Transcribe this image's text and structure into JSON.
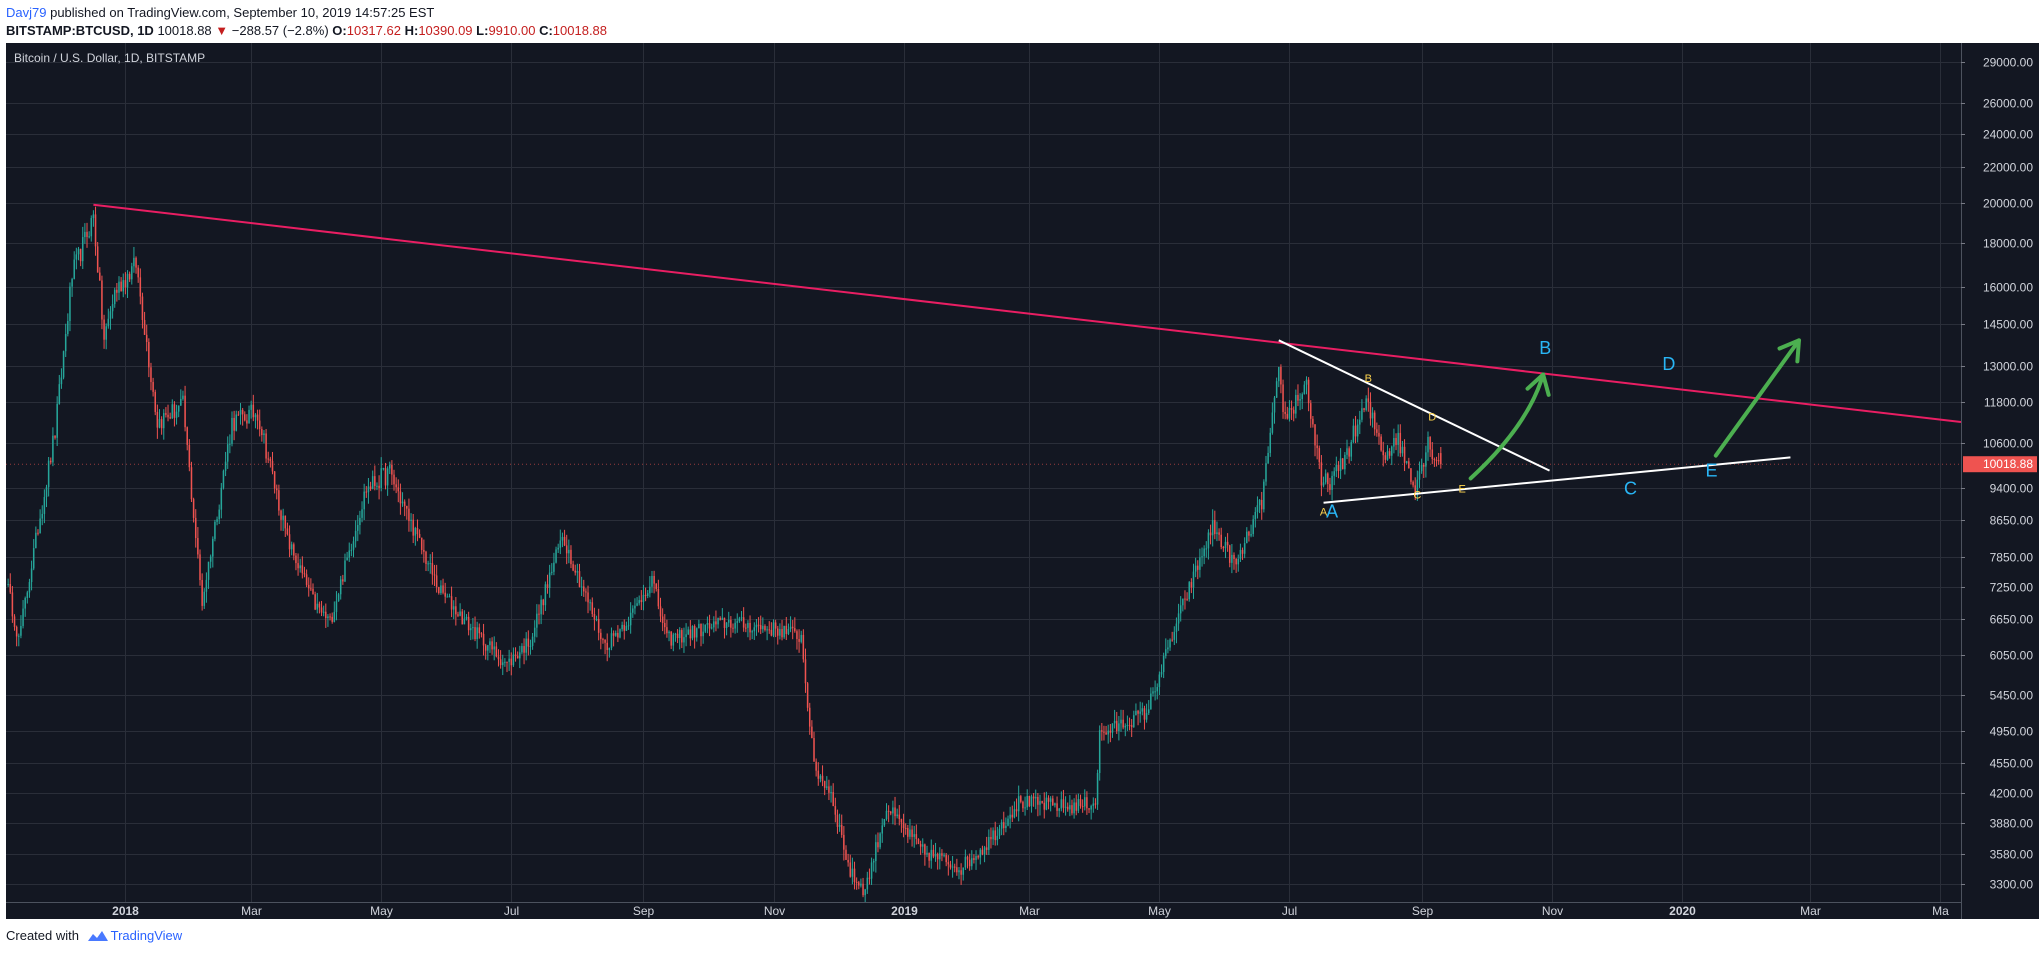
{
  "header": {
    "author": "Davj79",
    "published_text": "published on TradingView.com, September 10, 2019 14:57:25 EST",
    "symbol": "BITSTAMP:BTCUSD, 1D",
    "last": "10018.88",
    "change_arrow": "▼",
    "change": "−288.57 (−2.8%)",
    "o_label": "O:",
    "o_value": "10317.62",
    "h_label": "H:",
    "h_value": "10390.09",
    "l_label": "L:",
    "l_value": "9910.00",
    "c_label": "C:",
    "c_value": "10018.88"
  },
  "footer": {
    "created_with": "Created with",
    "brand": "TradingView"
  },
  "colors": {
    "background": "#131722",
    "grid": "#2a2e39",
    "up": "#26a69a",
    "down": "#ef5350",
    "resistance": "#e91e63",
    "trendline": "#ffffff",
    "arrow": "#4caf50",
    "wave_small": "#ffd54f",
    "wave_big": "#29b6f6",
    "price_tag": "#ef5350"
  },
  "chart_data": {
    "type": "candlestick",
    "title": "Bitcoin / U.S. Dollar, 1D, BITSTAMP",
    "scale": "log",
    "ylim": [
      3150,
      30500
    ],
    "last_price": "10018.88",
    "y_ticks": [
      "29000.00",
      "26000.00",
      "24000.00",
      "22000.00",
      "20000.00",
      "18000.00",
      "16000.00",
      "14500.00",
      "13000.00",
      "11800.00",
      "10600.00",
      "9400.00",
      "8650.00",
      "7850.00",
      "7250.00",
      "6650.00",
      "6050.00",
      "5450.00",
      "4950.00",
      "4550.00",
      "4200.00",
      "3880.00",
      "3580.00",
      "3300.00"
    ],
    "x_ticks": [
      {
        "label": "2018",
        "date": "2018-01-01",
        "bold": true
      },
      {
        "label": "Mar",
        "date": "2018-03-01"
      },
      {
        "label": "May",
        "date": "2018-05-01"
      },
      {
        "label": "Jul",
        "date": "2018-07-01"
      },
      {
        "label": "Sep",
        "date": "2018-09-01"
      },
      {
        "label": "Nov",
        "date": "2018-11-01"
      },
      {
        "label": "2019",
        "date": "2019-01-01",
        "bold": true
      },
      {
        "label": "Mar",
        "date": "2019-03-01"
      },
      {
        "label": "May",
        "date": "2019-05-01"
      },
      {
        "label": "Jul",
        "date": "2019-07-01"
      },
      {
        "label": "Sep",
        "date": "2019-09-01"
      },
      {
        "label": "Nov",
        "date": "2019-11-01"
      },
      {
        "label": "2020",
        "date": "2020-01-01",
        "bold": true
      },
      {
        "label": "Mar",
        "date": "2020-03-01"
      },
      {
        "label": "Ma",
        "date": "2020-05-01"
      }
    ],
    "xlim": [
      "2017-11-06",
      "2020-05-11"
    ],
    "price_path": [
      [
        "2017-11-06",
        7400
      ],
      [
        "2017-11-12",
        6300
      ],
      [
        "2017-11-20",
        8200
      ],
      [
        "2017-11-29",
        10900
      ],
      [
        "2017-12-07",
        16500
      ],
      [
        "2017-12-17",
        19300
      ],
      [
        "2017-12-22",
        13900
      ],
      [
        "2017-12-27",
        15800
      ],
      [
        "2018-01-06",
        17000
      ],
      [
        "2018-01-16",
        11200
      ],
      [
        "2018-01-28",
        11700
      ],
      [
        "2018-02-06",
        6950
      ],
      [
        "2018-02-20",
        11200
      ],
      [
        "2018-03-04",
        11500
      ],
      [
        "2018-03-18",
        8200
      ],
      [
        "2018-03-31",
        6900
      ],
      [
        "2018-04-07",
        6600
      ],
      [
        "2018-04-24",
        9400
      ],
      [
        "2018-05-05",
        9800
      ],
      [
        "2018-05-28",
        7200
      ],
      [
        "2018-06-12",
        6500
      ],
      [
        "2018-06-29",
        5900
      ],
      [
        "2018-07-10",
        6300
      ],
      [
        "2018-07-25",
        8300
      ],
      [
        "2018-08-14",
        6200
      ],
      [
        "2018-08-26",
        6700
      ],
      [
        "2018-09-05",
        7400
      ],
      [
        "2018-09-12",
        6300
      ],
      [
        "2018-10-10",
        6600
      ],
      [
        "2018-11-06",
        6450
      ],
      [
        "2018-11-14",
        6350
      ],
      [
        "2018-11-20",
        4500
      ],
      [
        "2018-11-28",
        4200
      ],
      [
        "2018-12-07",
        3400
      ],
      [
        "2018-12-14",
        3250
      ],
      [
        "2018-12-24",
        4050
      ],
      [
        "2019-01-10",
        3600
      ],
      [
        "2019-01-28",
        3450
      ],
      [
        "2019-02-08",
        3650
      ],
      [
        "2019-02-24",
        4100
      ],
      [
        "2019-03-20",
        4050
      ],
      [
        "2019-04-01",
        4100
      ],
      [
        "2019-04-03",
        4900
      ],
      [
        "2019-04-25",
        5200
      ],
      [
        "2019-05-12",
        6900
      ],
      [
        "2019-05-26",
        8500
      ],
      [
        "2019-06-06",
        7650
      ],
      [
        "2019-06-18",
        9100
      ],
      [
        "2019-06-26",
        12700
      ],
      [
        "2019-06-29",
        11300
      ],
      [
        "2019-07-09",
        12400
      ],
      [
        "2019-07-16",
        9450
      ],
      [
        "2019-07-24",
        9800
      ],
      [
        "2019-08-06",
        11750
      ],
      [
        "2019-08-15",
        10250
      ],
      [
        "2019-08-20",
        10800
      ],
      [
        "2019-08-29",
        9480
      ],
      [
        "2019-09-04",
        10600
      ],
      [
        "2019-09-10",
        10018.88
      ]
    ],
    "drawings": {
      "resistance_line": {
        "from": [
          "2017-12-17",
          19891
        ],
        "to": [
          "2020-05-11",
          11200
        ]
      },
      "upper_triangle_line": {
        "from": [
          "2019-06-26",
          13900
        ],
        "to": [
          "2019-10-31",
          9850
        ]
      },
      "lower_triangle_line": {
        "from": [
          "2019-07-17",
          9050
        ],
        "to": [
          "2020-02-21",
          10200
        ]
      },
      "arrows": [
        {
          "from": [
            "2019-09-24",
            9650
          ],
          "ctrl": [
            "2019-10-21",
            11100
          ],
          "to": [
            "2019-10-28",
            12700
          ]
        },
        {
          "from": [
            "2020-01-17",
            10250
          ],
          "to": [
            "2020-02-25",
            13900
          ]
        }
      ],
      "wave_labels_small": [
        {
          "text": "A",
          "at": [
            "2019-07-17",
            8750
          ]
        },
        {
          "text": "B",
          "at": [
            "2019-08-07",
            12450
          ]
        },
        {
          "text": "C",
          "at": [
            "2019-08-30",
            9150
          ]
        },
        {
          "text": "D",
          "at": [
            "2019-09-06",
            11250
          ]
        },
        {
          "text": "E",
          "at": [
            "2019-09-20",
            9300
          ]
        }
      ],
      "wave_labels_big": [
        {
          "text": "A",
          "at": [
            "2019-07-21",
            8700
          ]
        },
        {
          "text": "B",
          "at": [
            "2019-10-29",
            13400
          ]
        },
        {
          "text": "C",
          "at": [
            "2019-12-08",
            9250
          ]
        },
        {
          "text": "D",
          "at": [
            "2019-12-26",
            12850
          ]
        },
        {
          "text": "E",
          "at": [
            "2020-01-15",
            9700
          ]
        }
      ]
    }
  }
}
